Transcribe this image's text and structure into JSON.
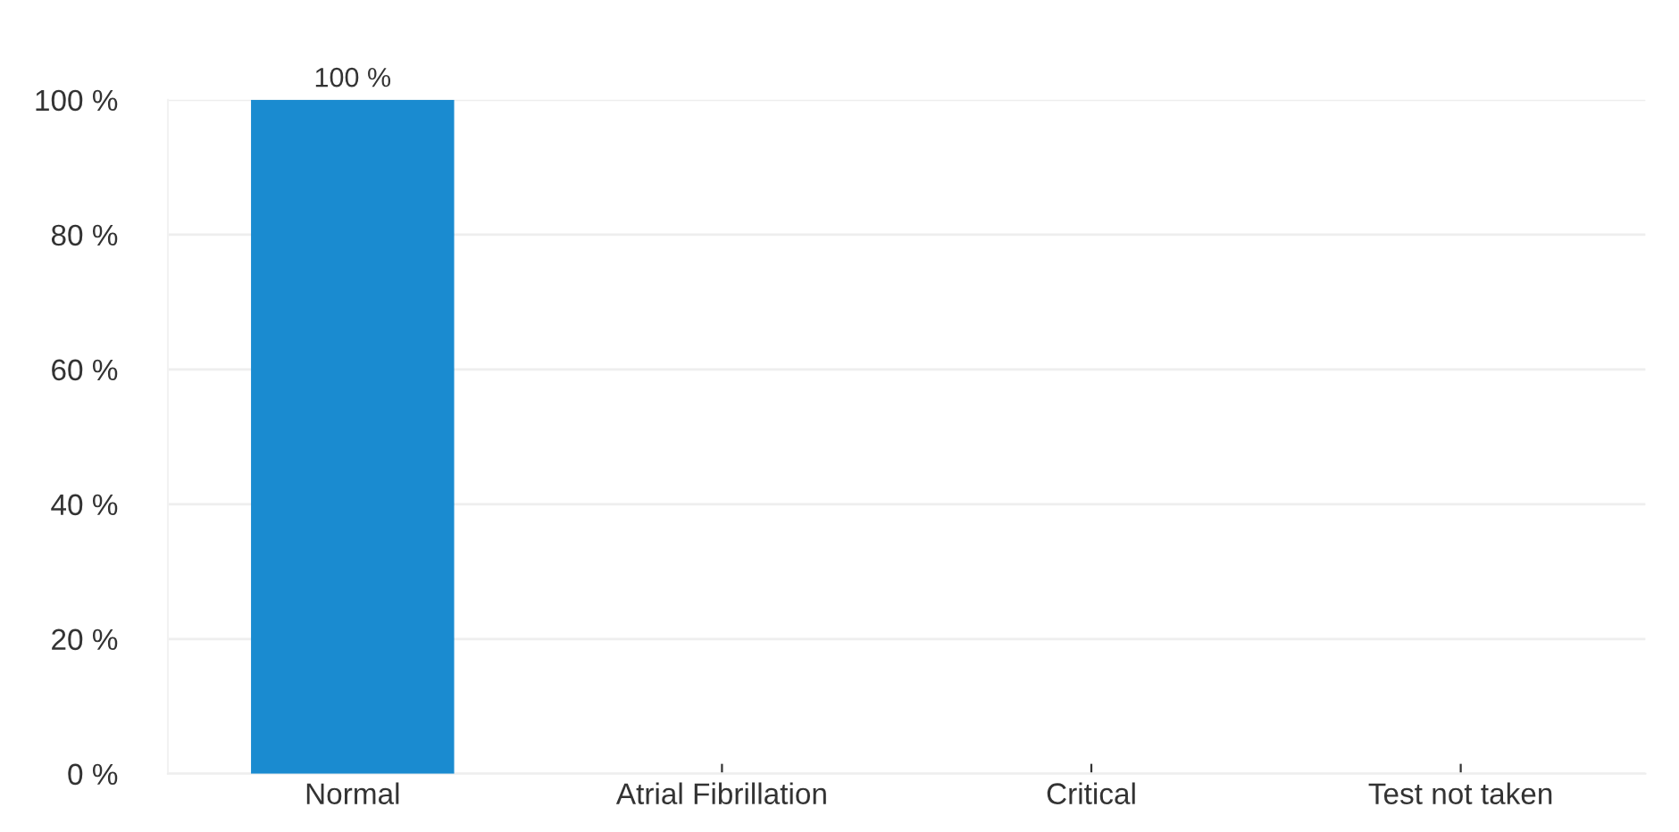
{
  "chart_data": {
    "type": "bar",
    "categories": [
      "Normal",
      "Atrial Fibrillation",
      "Critical",
      "Test not taken"
    ],
    "values": [
      100,
      0,
      0,
      0
    ],
    "color": "#1a8bd0",
    "value_labels": [
      "100 %",
      null,
      null,
      null
    ],
    "ylim": [
      0,
      100
    ],
    "yticks": [
      {
        "value": 0,
        "label": "0 %"
      },
      {
        "value": 20,
        "label": "20 %"
      },
      {
        "value": 40,
        "label": "40 %"
      },
      {
        "value": 60,
        "label": "60 %"
      },
      {
        "value": 80,
        "label": "80 %"
      },
      {
        "value": 100,
        "label": "100 %"
      }
    ],
    "grid": "y",
    "legend": false
  }
}
